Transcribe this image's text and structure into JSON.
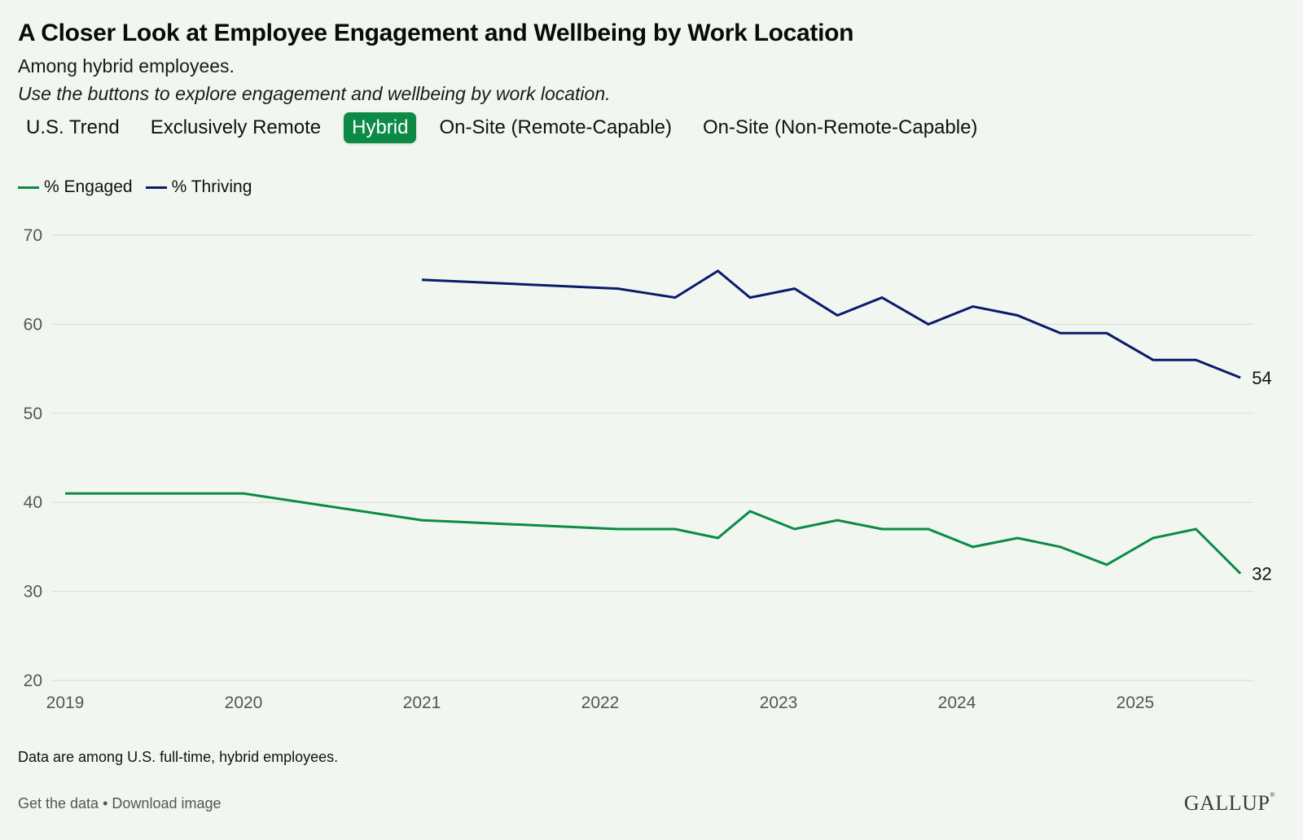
{
  "header": {
    "title": "A Closer Look at Employee Engagement and Wellbeing by Work Location",
    "subtitle": "Among hybrid employees.",
    "instruction": "Use the buttons to explore engagement and wellbeing by work location."
  },
  "tabs": [
    {
      "label": "U.S. Trend",
      "active": false
    },
    {
      "label": "Exclusively Remote",
      "active": false
    },
    {
      "label": "Hybrid",
      "active": true
    },
    {
      "label": "On-Site (Remote-Capable)",
      "active": false
    },
    {
      "label": "On-Site (Non-Remote-Capable)",
      "active": false
    }
  ],
  "colors": {
    "background": "#f1f7f0",
    "accent": "#0c8a46",
    "engaged": "#0c8a46",
    "thriving": "#0b1a6b",
    "grid": "#dcdfdb"
  },
  "chart_data": {
    "type": "line",
    "title": "A Closer Look at Employee Engagement and Wellbeing by Work Location",
    "xlabel": "",
    "ylabel": "",
    "xlim": [
      2019,
      2025.7
    ],
    "ylim": [
      20,
      70
    ],
    "x_ticks": [
      "2019",
      "2020",
      "2021",
      "2022",
      "2023",
      "2024",
      "2025"
    ],
    "y_ticks": [
      "20",
      "30",
      "40",
      "50",
      "60",
      "70"
    ],
    "grid": true,
    "legend_position": "top-left",
    "series": [
      {
        "name": "% Engaged",
        "color": "#0c8a46",
        "end_label": "32",
        "points": [
          {
            "x": 2019.0,
            "y": 41
          },
          {
            "x": 2020.0,
            "y": 41
          },
          {
            "x": 2021.0,
            "y": 38
          },
          {
            "x": 2022.1,
            "y": 37
          },
          {
            "x": 2022.42,
            "y": 37
          },
          {
            "x": 2022.66,
            "y": 36
          },
          {
            "x": 2022.84,
            "y": 39
          },
          {
            "x": 2023.09,
            "y": 37
          },
          {
            "x": 2023.33,
            "y": 38
          },
          {
            "x": 2023.58,
            "y": 37
          },
          {
            "x": 2023.84,
            "y": 37
          },
          {
            "x": 2024.09,
            "y": 35
          },
          {
            "x": 2024.34,
            "y": 36
          },
          {
            "x": 2024.58,
            "y": 35
          },
          {
            "x": 2024.84,
            "y": 33
          },
          {
            "x": 2025.1,
            "y": 36
          },
          {
            "x": 2025.34,
            "y": 37
          },
          {
            "x": 2025.59,
            "y": 32
          }
        ]
      },
      {
        "name": "% Thriving",
        "color": "#0b1a6b",
        "end_label": "54",
        "points": [
          {
            "x": 2021.0,
            "y": 65
          },
          {
            "x": 2022.1,
            "y": 64
          },
          {
            "x": 2022.42,
            "y": 63
          },
          {
            "x": 2022.66,
            "y": 66
          },
          {
            "x": 2022.84,
            "y": 63
          },
          {
            "x": 2023.09,
            "y": 64
          },
          {
            "x": 2023.33,
            "y": 61
          },
          {
            "x": 2023.58,
            "y": 63
          },
          {
            "x": 2023.84,
            "y": 60
          },
          {
            "x": 2024.09,
            "y": 62
          },
          {
            "x": 2024.34,
            "y": 61
          },
          {
            "x": 2024.58,
            "y": 59
          },
          {
            "x": 2024.84,
            "y": 59
          },
          {
            "x": 2025.1,
            "y": 56
          },
          {
            "x": 2025.34,
            "y": 56
          },
          {
            "x": 2025.59,
            "y": 54
          }
        ]
      }
    ]
  },
  "footer": {
    "note": "Data are among U.S. full-time, hybrid employees.",
    "get_data_label": "Get the data",
    "separator": "•",
    "download_label": "Download image",
    "logo": "GALLUP"
  }
}
